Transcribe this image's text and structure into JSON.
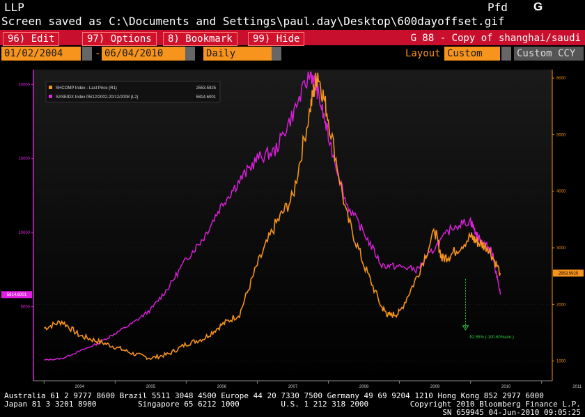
{
  "header": {
    "line1_left": "LLP",
    "line1_right": "Pfd",
    "line1_right_bold": "G",
    "status_message": "Screen saved as C:\\Documents and Settings\\paul.day\\Desktop\\600dayoffset.gif"
  },
  "menu": {
    "items": [
      {
        "label": "96) Edit"
      },
      {
        "label": "97) Options"
      },
      {
        "label": "8) Bookmark"
      },
      {
        "label": "99) Hide"
      }
    ],
    "title": "G 88 - Copy of shanghai/saudi"
  },
  "controls": {
    "start_date": "01/02/2004",
    "end_date": "06/04/2010",
    "period": "Daily",
    "layout_label": "Layout",
    "layout_value": "Custom",
    "currency": "Custom CCY"
  },
  "chart_data": {
    "type": "line",
    "legend": [
      {
        "name": "SHCOMP Index - Last Price (R1)",
        "value": "2553.5925",
        "color": "#f7941d"
      },
      {
        "name": "SASEIDX Index 05/12/2002-20/12/2008 (L2)",
        "value": "5814.6001",
        "color": "#e020e0"
      }
    ],
    "x_ticks": [
      "2004",
      "2005",
      "2006",
      "2007",
      "2008",
      "2009",
      "2010",
      "2011"
    ],
    "left_axis": {
      "ticks": [
        5000,
        10000,
        15000,
        20000
      ],
      "range": [
        0,
        21000
      ],
      "color": "#e020e0",
      "current_label": "5814.6001"
    },
    "right_axis": {
      "ticks": [
        1000,
        2000,
        3000,
        4000,
        5000,
        6000
      ],
      "range": [
        650,
        6150
      ],
      "color": "#f7941d",
      "current_label": "2553.5925"
    },
    "annotation": "-52.55% (-100.60%ann.)",
    "series": [
      {
        "name": "SHCOMP Index",
        "axis": "right",
        "x": [
          2004.0,
          2004.25,
          2004.5,
          2004.75,
          2005.0,
          2005.25,
          2005.5,
          2005.75,
          2006.0,
          2006.25,
          2006.5,
          2006.75,
          2007.0,
          2007.25,
          2007.5,
          2007.75,
          2007.85,
          2008.0,
          2008.25,
          2008.5,
          2008.75,
          2008.85,
          2009.0,
          2009.25,
          2009.5,
          2009.6,
          2009.75,
          2010.0,
          2010.1,
          2010.25,
          2010.42
        ],
        "y": [
          1580,
          1700,
          1450,
          1350,
          1250,
          1130,
          1050,
          1120,
          1300,
          1400,
          1640,
          1830,
          2700,
          3400,
          3900,
          5500,
          6100,
          5300,
          3600,
          2700,
          1950,
          1800,
          1850,
          2500,
          3300,
          2800,
          2900,
          3200,
          3100,
          3000,
          2553
        ]
      },
      {
        "name": "SASEIDX Index",
        "axis": "left",
        "x": [
          2004.0,
          2004.25,
          2004.5,
          2004.75,
          2005.0,
          2005.25,
          2005.5,
          2005.75,
          2006.0,
          2006.25,
          2006.5,
          2006.75,
          2007.0,
          2007.25,
          2007.5,
          2007.75,
          2007.85,
          2008.0,
          2008.25,
          2008.5,
          2008.75,
          2009.0,
          2009.25,
          2009.5,
          2009.75,
          2010.0,
          2010.1,
          2010.2,
          2010.3,
          2010.42
        ],
        "y": [
          1400,
          1500,
          2000,
          2500,
          3200,
          3900,
          4800,
          6300,
          8200,
          9700,
          11900,
          13500,
          15000,
          15500,
          18000,
          20800,
          19500,
          16500,
          12000,
          10000,
          7800,
          7700,
          7500,
          9000,
          10400,
          10800,
          9700,
          9200,
          8800,
          5814
        ]
      }
    ]
  },
  "footer": {
    "line1": "Australia 61 2 9777 8600 Brazil 5511 3048 4500 Europe 44 20 7330 7500 Germany 49 69 9204 1210 Hong Kong 852 2977 6000",
    "line2": "Japan 81 3 3201 8900         Singapore 65 6212 1000         U.S. 1 212 318 2000         Copyright 2010 Bloomberg Finance L.P.",
    "line3": "SN 659945 04-Jun-2010 09:05:25"
  }
}
